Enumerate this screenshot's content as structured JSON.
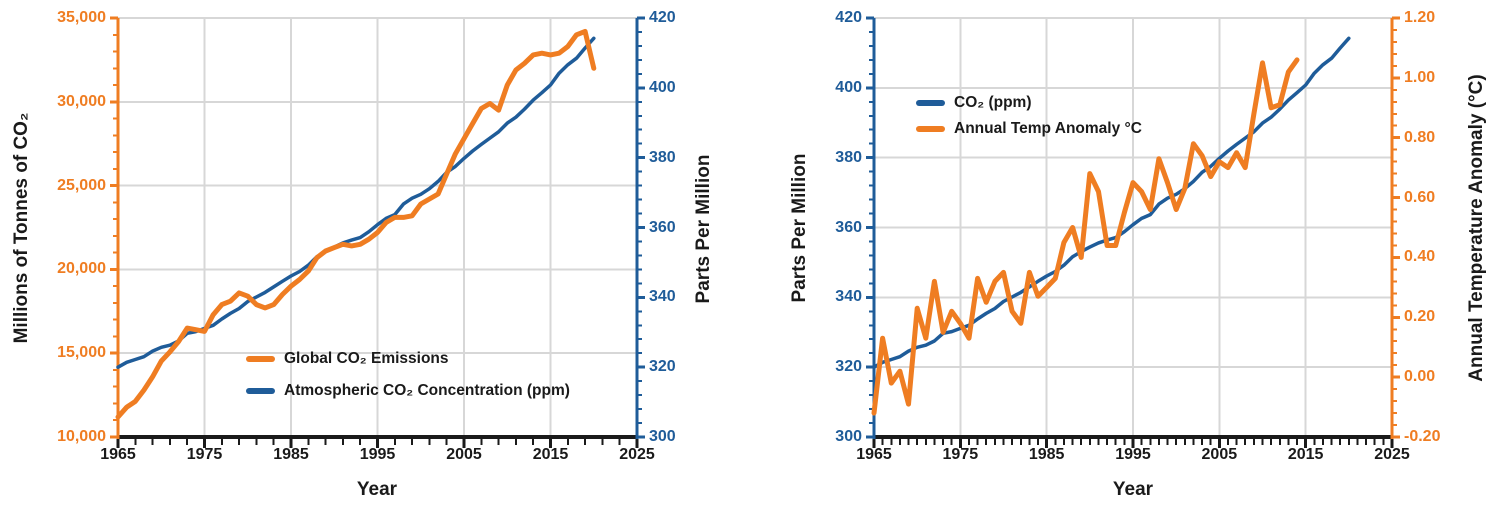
{
  "page": {
    "background": "#FFFFFF"
  },
  "colors": {
    "orange": "#EF7D22",
    "blue": "#1F5C99",
    "grid": "#D7D7D7",
    "axis_black": "#1A1A1A",
    "text_dark": "#1A1A1A"
  },
  "chart_data": [
    {
      "id": "global-emissions-vs-atmospheric-co2",
      "type": "line",
      "x_label": "Year",
      "x_range": [
        1965,
        2025
      ],
      "x_tick_step": 10,
      "x_minor_tick_step": 2,
      "x_tick_labels": [
        "1965",
        "1975",
        "1985",
        "1995",
        "2005",
        "2015",
        "2025"
      ],
      "grid": true,
      "legend_position": "inside-lower-middle",
      "y_left": {
        "label": "Millions of Tonnes of CO₂",
        "range": [
          10000,
          35000
        ],
        "major_step": 5000,
        "minor_step": 1000,
        "tick_labels": [
          "35,000",
          "30,000",
          "25,000",
          "20,000",
          "15,000",
          "10,000"
        ],
        "color": "#EF7D22"
      },
      "y_right": {
        "label": "Parts Per Million",
        "range": [
          300,
          420
        ],
        "major_step": 20,
        "minor_step": 4,
        "tick_labels": [
          "420",
          "400",
          "380",
          "360",
          "340",
          "320",
          "300"
        ],
        "color": "#1F5C99"
      },
      "series": [
        {
          "name": "Global CO₂ Emissions",
          "axis": "left",
          "color": "#EF7D22",
          "width": 5,
          "z": 2,
          "x_start": 1965,
          "x_step": 1,
          "values": [
            11191,
            11778,
            12126,
            12800,
            13591,
            14531,
            15077,
            15700,
            16500,
            16400,
            16300,
            17300,
            17900,
            18100,
            18600,
            18400,
            17900,
            17700,
            17900,
            18500,
            19000,
            19400,
            19900,
            20700,
            21100,
            21300,
            21500,
            21400,
            21500,
            21800,
            22200,
            22800,
            23100,
            23100,
            23200,
            23900,
            24200,
            24500,
            25700,
            26900,
            27800,
            28700,
            29600,
            29900,
            29500,
            31000,
            31900,
            32300,
            32800,
            32900,
            32800,
            32900,
            33300,
            34000,
            34200,
            32000
          ]
        },
        {
          "name": "Atmospheric CO₂ Concentration (ppm)",
          "axis": "right",
          "color": "#1F5C99",
          "width": 3.5,
          "z": 1,
          "x_start": 1965,
          "x_step": 1,
          "values": [
            320.0,
            321.4,
            322.2,
            323.0,
            324.6,
            325.7,
            326.3,
            327.5,
            329.7,
            330.2,
            331.1,
            332.0,
            333.8,
            335.4,
            336.8,
            338.8,
            340.1,
            341.4,
            343.0,
            344.6,
            346.1,
            347.4,
            349.2,
            351.6,
            353.1,
            354.4,
            355.6,
            356.4,
            357.1,
            358.8,
            360.8,
            362.6,
            363.7,
            366.7,
            368.4,
            369.5,
            371.1,
            373.2,
            375.8,
            377.5,
            379.8,
            381.9,
            383.8,
            385.6,
            387.4,
            389.9,
            391.6,
            393.9,
            396.5,
            398.6,
            400.8,
            404.2,
            406.6,
            408.5,
            411.4,
            414.2
          ]
        }
      ]
    },
    {
      "id": "atmospheric-co2-vs-temperature-anomaly",
      "type": "line",
      "x_label": "Year",
      "x_range": [
        1965,
        2025
      ],
      "x_tick_step": 10,
      "x_minor_tick_step": 1,
      "x_tick_labels": [
        "1965",
        "1975",
        "1985",
        "1995",
        "2005",
        "2015",
        "2025"
      ],
      "grid": true,
      "legend_position": "inside-upper-left",
      "y_left": {
        "label": "Parts Per Million",
        "range": [
          300,
          420
        ],
        "major_step": 20,
        "minor_step": 4,
        "tick_labels": [
          "420",
          "400",
          "380",
          "360",
          "340",
          "320",
          "300"
        ],
        "color": "#1F5C99"
      },
      "y_right": {
        "label": "Annual Temperature Anomaly (°C)",
        "range": [
          -0.2,
          1.2
        ],
        "major_step": 0.2,
        "minor_step": 0.04,
        "tick_labels": [
          "1.20",
          "1.00",
          "0.80",
          "0.60",
          "0.40",
          "0.20",
          "0.00",
          "-0.20"
        ],
        "color": "#EF7D22"
      },
      "series": [
        {
          "name": "CO₂ (ppm)",
          "axis": "left",
          "color": "#1F5C99",
          "width": 3.5,
          "z": 1,
          "x_start": 1965,
          "x_step": 1,
          "values": [
            320.0,
            321.4,
            322.2,
            323.0,
            324.6,
            325.7,
            326.3,
            327.5,
            329.7,
            330.2,
            331.1,
            332.0,
            333.8,
            335.4,
            336.8,
            338.8,
            340.1,
            341.4,
            343.0,
            344.6,
            346.1,
            347.4,
            349.2,
            351.6,
            353.1,
            354.4,
            355.6,
            356.4,
            357.1,
            358.8,
            360.8,
            362.6,
            363.7,
            366.7,
            368.4,
            369.5,
            371.1,
            373.2,
            375.8,
            377.5,
            379.8,
            381.9,
            383.8,
            385.6,
            387.4,
            389.9,
            391.6,
            393.9,
            396.5,
            398.6,
            400.8,
            404.2,
            406.6,
            408.5,
            411.4,
            414.2
          ]
        },
        {
          "name": "Annual Temp Anomaly °C",
          "axis": "right",
          "color": "#EF7D22",
          "width": 5,
          "z": 2,
          "x_start": 1965,
          "x_step": 1,
          "values": [
            -0.12,
            0.13,
            -0.02,
            0.02,
            -0.09,
            0.23,
            0.13,
            0.32,
            0.15,
            0.22,
            0.18,
            0.13,
            0.33,
            0.25,
            0.32,
            0.35,
            0.22,
            0.18,
            0.35,
            0.27,
            0.3,
            0.33,
            0.45,
            0.5,
            0.4,
            0.68,
            0.62,
            0.44,
            0.44,
            0.55,
            0.65,
            0.62,
            0.56,
            0.73,
            0.65,
            0.56,
            0.63,
            0.78,
            0.74,
            0.67,
            0.72,
            0.7,
            0.75,
            0.7,
            0.88,
            1.05,
            0.9,
            0.91,
            1.02,
            1.06
          ]
        }
      ]
    }
  ]
}
